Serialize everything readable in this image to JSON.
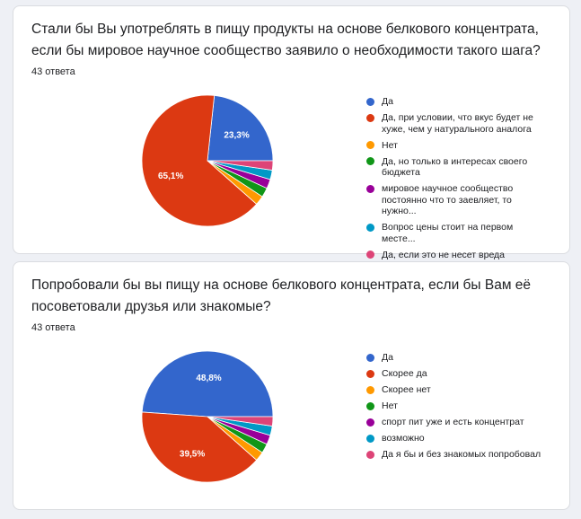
{
  "cards": [
    {
      "title": "Стали бы Вы употреблять в пищу продукты на основе белкового концентрата, если бы мировое научное сообщество заявило о необходимости такого шага?",
      "responses": "43 ответа"
    },
    {
      "title": "Попробовали бы вы пищу на основе белкового концентрата, если бы Вам её посоветовали друзья или знакомые?",
      "responses": "43 ответа"
    }
  ],
  "chart_data": [
    {
      "type": "pie",
      "total": 43,
      "slices": [
        {
          "label": "Да",
          "value": 23.3,
          "color": "#3366cc",
          "data_label": "23,3%"
        },
        {
          "label": "Да, при условии, что вкус будет не хуже, чем у натурального аналога",
          "value": 65.1,
          "color": "#dc3912",
          "data_label": "65,1%"
        },
        {
          "label": "Нет",
          "value": 2.3,
          "color": "#ff9900",
          "data_label": ""
        },
        {
          "label": "Да, но только в интересах своего бюджета",
          "value": 2.3,
          "color": "#109618",
          "data_label": ""
        },
        {
          "label": "мировое научное сообщество постоянно что то заевляет, то нужно...",
          "value": 2.3,
          "color": "#990099",
          "data_label": ""
        },
        {
          "label": "Вопрос цены стоит на первом месте...",
          "value": 2.3,
          "color": "#0099c6",
          "data_label": ""
        },
        {
          "label": "Да, если это не несет вреда здоровью",
          "value": 2.3,
          "color": "#dd4477",
          "data_label": ""
        }
      ],
      "legend_position": "right"
    },
    {
      "type": "pie",
      "total": 43,
      "slices": [
        {
          "label": "Да",
          "value": 48.8,
          "color": "#3366cc",
          "data_label": "48,8%"
        },
        {
          "label": "Скорее да",
          "value": 39.5,
          "color": "#dc3912",
          "data_label": "39,5%"
        },
        {
          "label": "Скорее нет",
          "value": 2.3,
          "color": "#ff9900",
          "data_label": ""
        },
        {
          "label": "Нет",
          "value": 2.3,
          "color": "#109618",
          "data_label": ""
        },
        {
          "label": "спорт пит уже и есть концентрат",
          "value": 2.3,
          "color": "#990099",
          "data_label": ""
        },
        {
          "label": "возможно",
          "value": 2.3,
          "color": "#0099c6",
          "data_label": ""
        },
        {
          "label": "Да я бы и без знакомых попробовал",
          "value": 2.3,
          "color": "#dd4477",
          "data_label": ""
        }
      ],
      "legend_position": "right"
    }
  ]
}
